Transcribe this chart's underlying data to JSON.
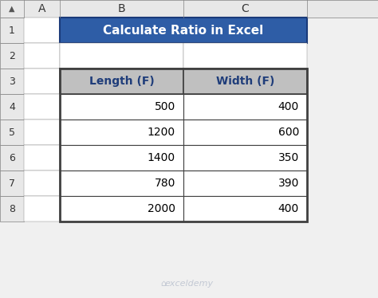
{
  "title": "Calculate Ratio in Excel",
  "title_bg": "#2E5DA6",
  "title_fg": "#FFFFFF",
  "header_bg": "#C0C0C0",
  "header_fg": "#1F3D7A",
  "col_headers": [
    "Length (F)",
    "Width (F)"
  ],
  "rows": [
    [
      500,
      400
    ],
    [
      1200,
      600
    ],
    [
      1400,
      350
    ],
    [
      780,
      390
    ],
    [
      2000,
      400
    ]
  ],
  "row_labels": [
    "1",
    "2",
    "3",
    "4",
    "5",
    "6",
    "7",
    "8"
  ],
  "col_labels": [
    "A",
    "B",
    "C"
  ],
  "cell_bg": "#FFFFFF",
  "cell_fg": "#000000",
  "border_color": "#808080",
  "outer_border_color": "#404040",
  "grid_bg": "#F0F0F0",
  "row_header_bg": "#E8E8E8",
  "watermark": "exceldemy",
  "watermark_color": "#B0B8C8"
}
